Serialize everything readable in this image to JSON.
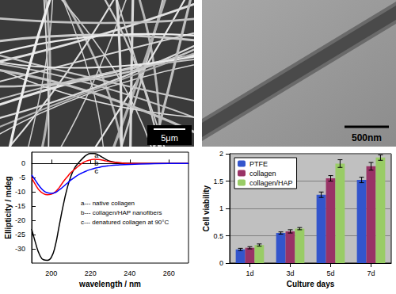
{
  "images": [
    {
      "scale_bar": "5μm"
    },
    {
      "scale_bar": "500nm"
    }
  ],
  "chart_data": [
    {
      "type": "line",
      "x_label": "wavelength / nm",
      "y_label": "Ellipticity / mdeg",
      "x": [
        190,
        192,
        194,
        196,
        198,
        200,
        202,
        204,
        206,
        208,
        210,
        212,
        214,
        216,
        218,
        220,
        222,
        224,
        226,
        228,
        230,
        234,
        240,
        250,
        260,
        270
      ],
      "xlim": [
        190,
        270
      ],
      "xticks": [
        200,
        220,
        240,
        260
      ],
      "ylim": [
        -35,
        4
      ],
      "yticks": [
        -30,
        -25,
        -20,
        -15,
        -10,
        -5,
        0
      ],
      "series": [
        {
          "name": "a--- native collagen",
          "color": "#000000",
          "values": [
            -23,
            -28,
            -32,
            -33.8,
            -34,
            -33,
            -29,
            -22,
            -15,
            -9,
            -4.5,
            -1.5,
            0.3,
            1.8,
            3,
            3.5,
            3.5,
            3,
            2.2,
            1.4,
            0.8,
            0.3,
            0.1,
            0,
            0,
            0
          ]
        },
        {
          "name": "b--- collagen/HAP nanofibers",
          "color": "#ff0000",
          "values": [
            -5,
            -7.5,
            -9.5,
            -10.6,
            -11,
            -10.8,
            -10,
            -8.5,
            -6.5,
            -4.8,
            -3.2,
            -2,
            -0.8,
            0.2,
            0.9,
            1.3,
            1.5,
            1.4,
            1.2,
            0.9,
            0.6,
            0.3,
            0,
            0,
            0,
            0
          ]
        },
        {
          "name": "c--- denatured collagen at 90°C",
          "color": "#0000ff",
          "values": [
            -4,
            -6,
            -8,
            -9.5,
            -10.3,
            -10.5,
            -10.2,
            -9.3,
            -8.2,
            -7,
            -5.8,
            -4.8,
            -3.9,
            -3.2,
            -2.6,
            -2.1,
            -1.7,
            -1.4,
            -1.1,
            -0.9,
            -0.7,
            -0.5,
            -0.3,
            -0.1,
            0,
            0
          ]
        }
      ],
      "annotations": [
        {
          "text": "a",
          "x": 223,
          "y": 2.8
        },
        {
          "text": "b",
          "x": 223,
          "y": 0
        },
        {
          "text": "c",
          "x": 223,
          "y": -2.8
        }
      ]
    },
    {
      "type": "bar",
      "x_label": "Culture days",
      "y_label": "Cell viability",
      "categories": [
        "1d",
        "3d",
        "5d",
        "7d"
      ],
      "ylim": [
        0,
        2
      ],
      "yticks": [
        0,
        0.5,
        1,
        1.5,
        2
      ],
      "grid": true,
      "legend": "upper left",
      "series": [
        {
          "name": "PTFE",
          "color": "#3355cc",
          "values": [
            0.25,
            0.55,
            1.25,
            1.52
          ],
          "errors": [
            0.02,
            0.02,
            0.05,
            0.05
          ]
        },
        {
          "name": "collagen",
          "color": "#993366",
          "values": [
            0.28,
            0.58,
            1.55,
            1.77
          ],
          "errors": [
            0.02,
            0.03,
            0.05,
            0.07
          ]
        },
        {
          "name": "collagen/HAP",
          "color": "#99cc66",
          "values": [
            0.33,
            0.63,
            1.82,
            1.93
          ],
          "errors": [
            0.02,
            0.02,
            0.07,
            0.05
          ]
        }
      ]
    }
  ]
}
